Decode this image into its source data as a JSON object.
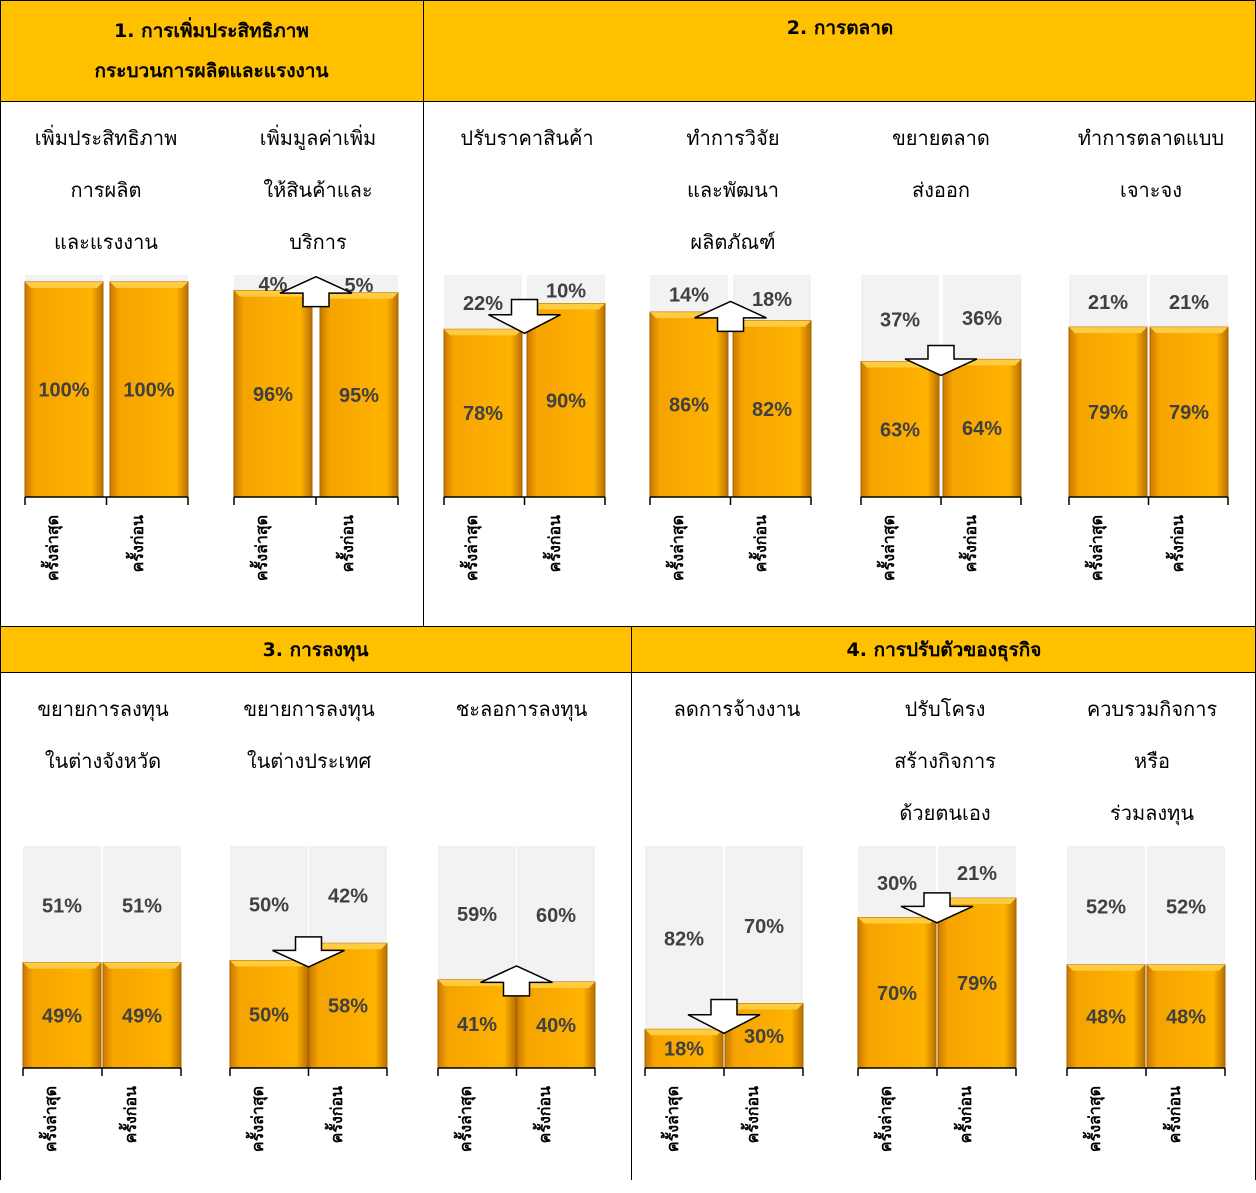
{
  "sections": [
    {
      "id": "s1",
      "title": "1. การเพิ่มประสิทธิภาพ\nกระบวนการผลิตและแรงงาน"
    },
    {
      "id": "s2",
      "title": "2. การตลาด"
    },
    {
      "id": "s3",
      "title": "3. การลงทุน"
    },
    {
      "id": "s4",
      "title": "4. การปรับตัวของธุรกิจ"
    }
  ],
  "x_labels": [
    "ครั้งล่าสุด",
    "ครั้งก่อน"
  ],
  "colors": {
    "header": "#FFC000",
    "bar": "#F5A300",
    "background_bar": "#F2F2F2",
    "label": "#404040"
  },
  "chart_data": [
    {
      "type": "bar",
      "section": "1. การเพิ่มประสิทธิภาพกระบวนการผลิตและแรงงาน",
      "title": "เพิ่มประสิทธิภาพ\nการผลิต\nและแรงงาน",
      "categories": [
        "ครั้งล่าสุด",
        "ครั้งก่อน"
      ],
      "values": [
        100,
        100
      ],
      "value_labels": [
        "100%",
        "100%"
      ],
      "remainder_labels": [
        "",
        ""
      ],
      "arrow": "none"
    },
    {
      "type": "bar",
      "section": "1. การเพิ่มประสิทธิภาพกระบวนการผลิตและแรงงาน",
      "title": "เพิ่มมูลค่าเพิ่ม\nให้สินค้าและ\nบริการ",
      "categories": [
        "ครั้งล่าสุด",
        "ครั้งก่อน"
      ],
      "values": [
        96,
        95
      ],
      "value_labels": [
        "96%",
        "95%"
      ],
      "remainder_labels": [
        "4%",
        "5%"
      ],
      "arrow": "up"
    },
    {
      "type": "bar",
      "section": "2. การตลาด",
      "title": "ปรับราคาสินค้า",
      "categories": [
        "ครั้งล่าสุด",
        "ครั้งก่อน"
      ],
      "values": [
        78,
        90
      ],
      "value_labels": [
        "78%",
        "90%"
      ],
      "remainder_labels": [
        "22%",
        "10%"
      ],
      "arrow": "down"
    },
    {
      "type": "bar",
      "section": "2. การตลาด",
      "title": "ทำการวิจัย\nและพัฒนา\nผลิตภัณฑ์",
      "categories": [
        "ครั้งล่าสุด",
        "ครั้งก่อน"
      ],
      "values": [
        86,
        82
      ],
      "value_labels": [
        "86%",
        "82%"
      ],
      "remainder_labels": [
        "14%",
        "18%"
      ],
      "arrow": "up"
    },
    {
      "type": "bar",
      "section": "2. การตลาด",
      "title": "ขยายตลาด\nส่งออก",
      "categories": [
        "ครั้งล่าสุด",
        "ครั้งก่อน"
      ],
      "values": [
        63,
        64
      ],
      "value_labels": [
        "63%",
        "64%"
      ],
      "remainder_labels": [
        "37%",
        "36%"
      ],
      "arrow": "down"
    },
    {
      "type": "bar",
      "section": "2. การตลาด",
      "title": "ทำการตลาดแบบ\nเจาะจง",
      "categories": [
        "ครั้งล่าสุด",
        "ครั้งก่อน"
      ],
      "values": [
        79,
        79
      ],
      "value_labels": [
        "79%",
        "79%"
      ],
      "remainder_labels": [
        "21%",
        "21%"
      ],
      "arrow": "none"
    },
    {
      "type": "bar",
      "section": "3. การลงทุน",
      "title": "ขยายการลงทุน\nในต่างจังหวัด",
      "categories": [
        "ครั้งล่าสุด",
        "ครั้งก่อน"
      ],
      "values": [
        49,
        49
      ],
      "value_labels": [
        "49%",
        "49%"
      ],
      "remainder_labels": [
        "51%",
        "51%"
      ],
      "arrow": "none"
    },
    {
      "type": "bar",
      "section": "3. การลงทุน",
      "title": "ขยายการลงทุน\nในต่างประเทศ",
      "categories": [
        "ครั้งล่าสุด",
        "ครั้งก่อน"
      ],
      "values": [
        50,
        58
      ],
      "value_labels": [
        "50%",
        "58%"
      ],
      "remainder_labels": [
        "50%",
        "42%"
      ],
      "arrow": "down"
    },
    {
      "type": "bar",
      "section": "3. การลงทุน",
      "title": "ชะลอการลงทุน",
      "categories": [
        "ครั้งล่าสุด",
        "ครั้งก่อน"
      ],
      "values": [
        41,
        40
      ],
      "value_labels": [
        "41%",
        "40%"
      ],
      "remainder_labels": [
        "59%",
        "60%"
      ],
      "arrow": "up"
    },
    {
      "type": "bar",
      "section": "4. การปรับตัวของธุรกิจ",
      "title": "ลดการจ้างงาน",
      "categories": [
        "ครั้งล่าสุด",
        "ครั้งก่อน"
      ],
      "values": [
        18,
        30
      ],
      "value_labels": [
        "18%",
        "30%"
      ],
      "remainder_labels": [
        "82%",
        "70%"
      ],
      "arrow": "down"
    },
    {
      "type": "bar",
      "section": "4. การปรับตัวของธุรกิจ",
      "title": "ปรับโครง\nสร้างกิจการ\nด้วยตนเอง",
      "categories": [
        "ครั้งล่าสุด",
        "ครั้งก่อน"
      ],
      "values": [
        70,
        79
      ],
      "value_labels": [
        "70%",
        "79%"
      ],
      "remainder_labels": [
        "30%",
        "21%"
      ],
      "arrow": "down"
    },
    {
      "type": "bar",
      "section": "4. การปรับตัวของธุรกิจ",
      "title": "ควบรวมกิจการ\nหรือ\nร่วมลงทุน",
      "categories": [
        "ครั้งล่าสุด",
        "ครั้งก่อน"
      ],
      "values": [
        48,
        48
      ],
      "value_labels": [
        "48%",
        "48%"
      ],
      "remainder_labels": [
        "52%",
        "52%"
      ],
      "arrow": "none"
    }
  ]
}
